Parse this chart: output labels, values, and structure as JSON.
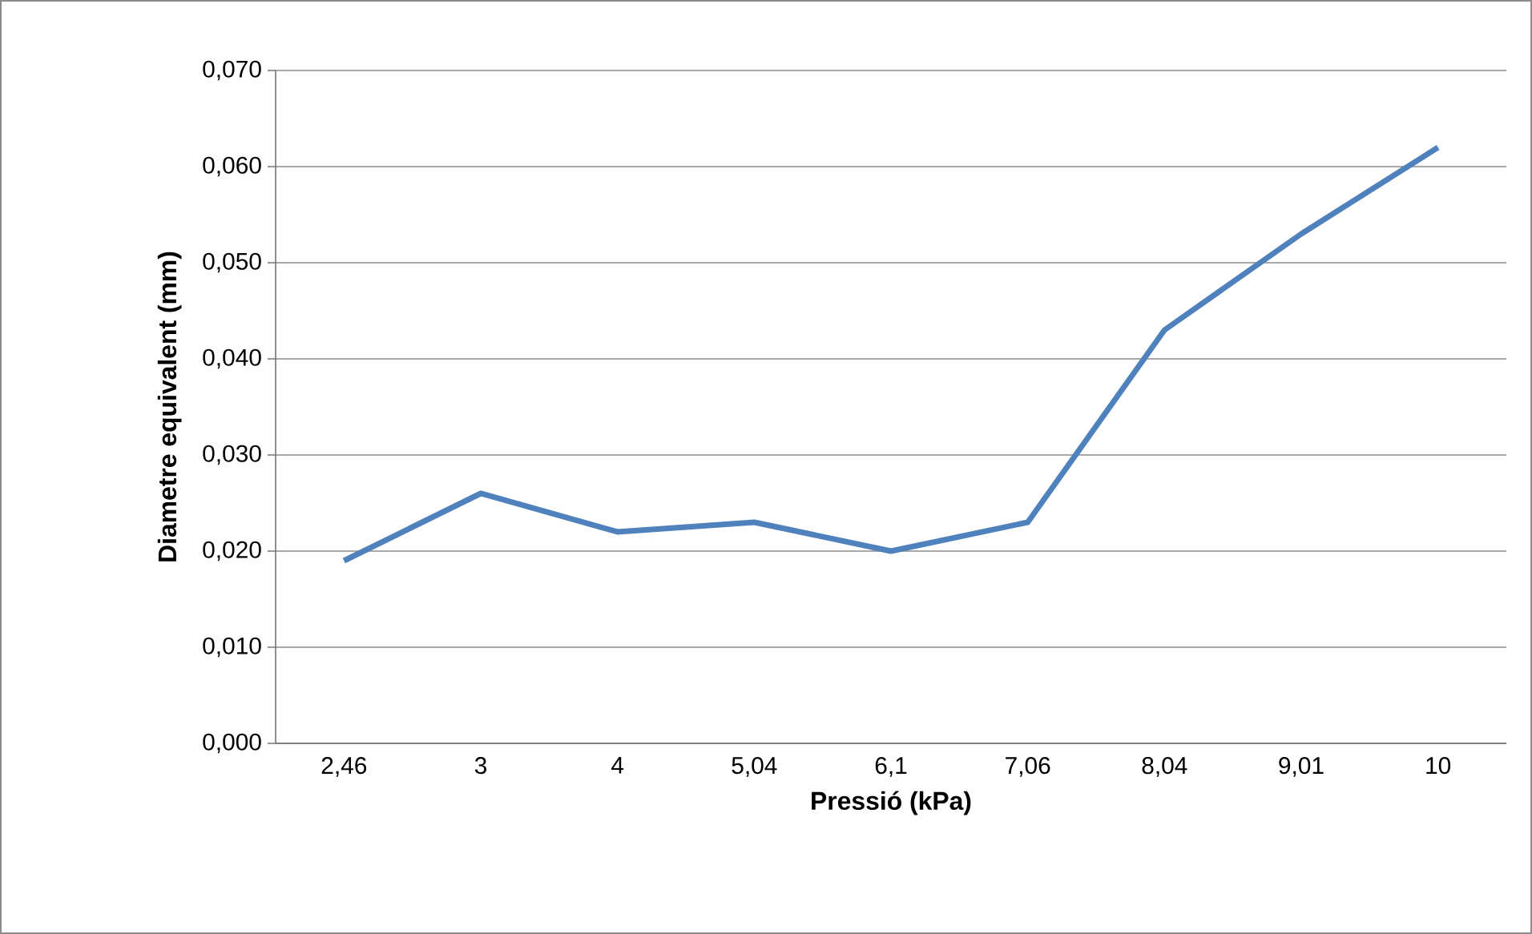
{
  "chart_data": {
    "type": "line",
    "xlabel": "Pressió (kPa)",
    "ylabel": "Diametre equivalent (mm)",
    "categories": [
      "2,46",
      "3",
      "4",
      "5,04",
      "6,1",
      "7,06",
      "8,04",
      "9,01",
      "10"
    ],
    "series": [
      {
        "color": "#4f81bd",
        "values": [
          0.019,
          0.026,
          0.022,
          0.023,
          0.02,
          0.023,
          0.043,
          0.053,
          0.062
        ]
      }
    ],
    "ylim": [
      0,
      0.07
    ],
    "yticks": [
      {
        "value": 0,
        "label": "0,000"
      },
      {
        "value": 0.01,
        "label": "0,010"
      },
      {
        "value": 0.02,
        "label": "0,020"
      },
      {
        "value": 0.03,
        "label": "0,030"
      },
      {
        "value": 0.04,
        "label": "0,040"
      },
      {
        "value": 0.05,
        "label": "0,050"
      },
      {
        "value": 0.06,
        "label": "0,060"
      },
      {
        "value": 0.07,
        "label": "0,070"
      }
    ],
    "grid": "y",
    "marker": "none",
    "line_style": "solid"
  }
}
